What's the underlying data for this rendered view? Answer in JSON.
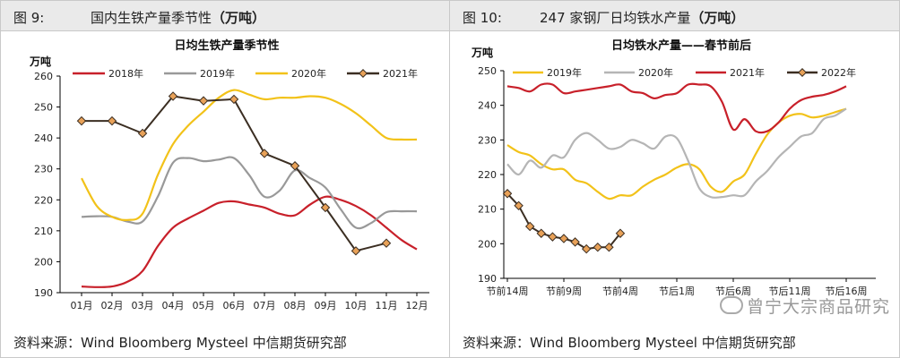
{
  "left_panel": {
    "fig_num": "图 9:",
    "fig_title_main": "国内生铁产量季节性",
    "fig_title_unit": "（万吨）",
    "source": "资料来源：Wind Bloomberg Mysteel 中信期货研究部"
  },
  "right_panel": {
    "fig_num": "图 10:",
    "fig_title_main": "247 家钢厂日均铁水产量",
    "fig_title_unit": "（万吨）",
    "source": "资料来源：Wind Bloomberg Mysteel 中信期货研究部",
    "watermark": "曾宁大宗商品研究"
  },
  "chart_data": [
    {
      "type": "line",
      "title": "日均生铁产量季节性",
      "ylabel": "万吨",
      "xlabel": "",
      "ylim": [
        190,
        260
      ],
      "yticks": [
        190,
        200,
        210,
        220,
        230,
        240,
        250,
        260
      ],
      "categories": [
        "01月",
        "02月",
        "03月",
        "04月",
        "05月",
        "06月",
        "07月",
        "08月",
        "09月",
        "10月",
        "11月",
        "12月"
      ],
      "series": [
        {
          "name": "2018年",
          "color": "#c8202a",
          "marker": false,
          "x": [
            0,
            0.5,
            1,
            1.5,
            2,
            2.5,
            3,
            3.5,
            4,
            4.5,
            5,
            5.5,
            6,
            6.5,
            7,
            7.5,
            8,
            8.5,
            9,
            9.5,
            10,
            10.5,
            11
          ],
          "y": [
            192,
            191.8,
            192,
            193.5,
            197,
            205,
            211,
            214,
            216.5,
            219,
            219.5,
            218.5,
            217.5,
            215.5,
            215,
            218.5,
            221,
            220,
            218,
            215,
            211,
            207,
            204
          ]
        },
        {
          "name": "2019年",
          "color": "#999999",
          "marker": false,
          "x": [
            0,
            0.5,
            1,
            1.5,
            2,
            2.5,
            3,
            3.5,
            4,
            4.5,
            5,
            5.5,
            6,
            6.5,
            7,
            7.5,
            8,
            8.5,
            9,
            9.5,
            10,
            10.5,
            11
          ],
          "y": [
            214.5,
            214.7,
            214.5,
            213,
            213,
            221,
            232,
            233.5,
            232.5,
            233,
            233.5,
            228,
            221,
            223,
            229.5,
            227,
            224,
            217,
            211,
            212.5,
            216,
            216.3,
            216.3
          ]
        },
        {
          "name": "2020年",
          "color": "#f2c219",
          "marker": false,
          "x": [
            0,
            0.5,
            1,
            1.5,
            2,
            2.5,
            3,
            3.5,
            4,
            4.5,
            5,
            5.5,
            6,
            6.5,
            7,
            7.5,
            8,
            8.5,
            9,
            9.5,
            10,
            10.5,
            11
          ],
          "y": [
            227,
            218,
            214.5,
            213.5,
            215.5,
            228,
            238,
            244,
            248.5,
            253,
            255.5,
            254,
            252.5,
            253,
            253,
            253.5,
            253,
            251,
            248,
            244,
            240,
            239.5,
            239.5
          ]
        },
        {
          "name": "2021年",
          "color": "#3b2e22",
          "marker": true,
          "x": [
            0,
            1,
            2,
            3,
            4,
            5,
            6,
            7,
            8,
            9,
            10
          ],
          "y": [
            245.5,
            245.5,
            241.5,
            253.5,
            252,
            252.5,
            235,
            231,
            217.5,
            203.5,
            206
          ]
        }
      ]
    },
    {
      "type": "line",
      "title": "日均铁水产量——春节前后",
      "ylabel": "万吨",
      "xlabel": "",
      "ylim": [
        190,
        250
      ],
      "yticks": [
        190,
        200,
        210,
        220,
        230,
        240,
        250
      ],
      "categories": [
        "节前14周",
        "节前9周",
        "节前4周",
        "节后1周",
        "节后6周",
        "节后11周",
        "节后16周"
      ],
      "series": [
        {
          "name": "2019年",
          "color": "#f2c219",
          "marker": false,
          "x": [
            0,
            1,
            2,
            3,
            4,
            5,
            6,
            7,
            8,
            9,
            10,
            11,
            12,
            13,
            14,
            15,
            16,
            17,
            18,
            19,
            20,
            21,
            22,
            23,
            24,
            25,
            26,
            27,
            28,
            29,
            30
          ],
          "y": [
            228.5,
            226.5,
            225.5,
            223,
            221.5,
            221.5,
            218.5,
            217.5,
            215,
            213,
            214,
            214,
            216.5,
            218.5,
            220,
            222,
            223,
            221.5,
            216.5,
            215,
            218,
            220,
            226,
            231.5,
            235,
            237,
            237.5,
            236.5,
            237,
            238,
            239
          ]
        },
        {
          "name": "2020年",
          "color": "#b5b5b5",
          "marker": false,
          "x": [
            0,
            1,
            2,
            3,
            4,
            5,
            6,
            7,
            8,
            9,
            10,
            11,
            12,
            13,
            14,
            15,
            16,
            17,
            18,
            19,
            20,
            21,
            22,
            23,
            24,
            25,
            26,
            27,
            28,
            29,
            30
          ],
          "y": [
            223,
            220,
            224,
            222,
            225.5,
            225,
            230,
            232,
            230,
            227.5,
            228,
            230,
            229,
            227.5,
            231,
            230.5,
            224,
            216,
            213.5,
            213.5,
            214,
            214,
            218,
            221,
            225,
            228,
            231,
            232,
            236,
            237,
            239
          ]
        },
        {
          "name": "2021年",
          "color": "#c8202a",
          "marker": false,
          "x": [
            0,
            1,
            2,
            3,
            4,
            5,
            6,
            7,
            8,
            9,
            10,
            11,
            12,
            13,
            14,
            15,
            16,
            17,
            18,
            19,
            20,
            21,
            22,
            23,
            24,
            25,
            26,
            27,
            28,
            29,
            30
          ],
          "y": [
            245.5,
            245,
            244,
            246,
            246,
            243.5,
            244,
            244.5,
            245,
            245.5,
            246,
            244,
            243.5,
            242,
            243,
            243.5,
            246,
            246,
            245.5,
            241,
            233,
            236,
            232.5,
            232.5,
            235,
            239,
            241.5,
            242.5,
            243,
            244,
            245.5
          ]
        },
        {
          "name": "2022年",
          "color": "#3b2e22",
          "marker": true,
          "x": [
            0,
            1,
            2,
            3,
            4,
            5,
            6,
            7,
            8,
            9,
            10
          ],
          "y": [
            214.5,
            211,
            205,
            203,
            202,
            201.5,
            200.5,
            198.5,
            199,
            199,
            203
          ]
        }
      ]
    }
  ]
}
